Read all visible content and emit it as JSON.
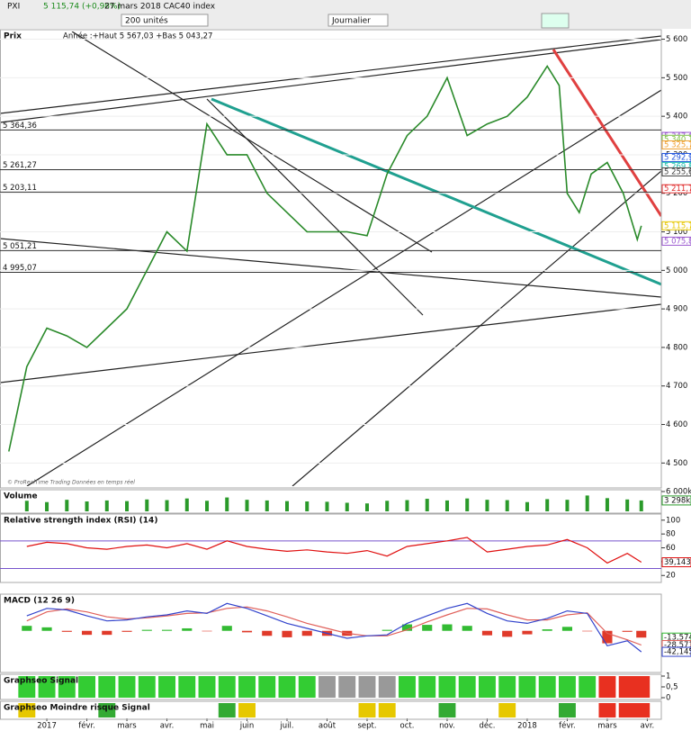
{
  "header": {
    "symbol": "PXI",
    "change": "5 115,74 (+0,98%)",
    "date": "27 mars 2018 CAC40 index",
    "units": "200 unités",
    "period": "Journalier"
  },
  "chart_data": [
    {
      "type": "line",
      "title": "Prix",
      "subtitle": "Année :+Haut 5 567,03 +Bas 5 043,27",
      "source": "© ProRealTime Trading  Données en temps réel",
      "color": "#2a8a2a",
      "x": [
        -0.95,
        -0.5,
        0,
        0.5,
        1,
        1.5,
        2,
        2.5,
        3,
        3.5,
        4,
        4.5,
        5,
        5.5,
        6,
        6.5,
        7,
        7.5,
        8,
        8.5,
        9,
        9.5,
        10,
        10.5,
        11,
        11.5,
        12,
        12.5,
        12.8,
        13,
        13.3,
        13.6,
        14,
        14.4,
        14.75,
        14.85
      ],
      "values": [
        4530,
        4750,
        4850,
        4830,
        4800,
        4850,
        4900,
        5000,
        5100,
        5050,
        5380,
        5300,
        5300,
        5200,
        5150,
        5100,
        5100,
        5100,
        5090,
        5250,
        5350,
        5400,
        5500,
        5350,
        5380,
        5400,
        5450,
        5530,
        5480,
        5200,
        5150,
        5250,
        5280,
        5200,
        5080,
        5115.74
      ],
      "xlim": [
        -1.17,
        15.35
      ],
      "xticks": [
        {
          "value": 0,
          "label": "2017"
        },
        {
          "value": 1,
          "label": "févr."
        },
        {
          "value": 2,
          "label": "mars"
        },
        {
          "value": 3,
          "label": "avr."
        },
        {
          "value": 4,
          "label": "mai"
        },
        {
          "value": 5,
          "label": "juin"
        },
        {
          "value": 6,
          "label": "juil."
        },
        {
          "value": 7,
          "label": "août"
        },
        {
          "value": 8,
          "label": "sept."
        },
        {
          "value": 9,
          "label": "oct."
        },
        {
          "value": 10,
          "label": "nov."
        },
        {
          "value": 11,
          "label": "déc."
        },
        {
          "value": 12,
          "label": "2018"
        },
        {
          "value": 13,
          "label": "févr."
        },
        {
          "value": 14,
          "label": "mars"
        },
        {
          "value": 15,
          "label": "avr."
        }
      ],
      "ylim": [
        4440,
        5620
      ],
      "yticks": [
        {
          "value": 4500,
          "label": "4 500"
        },
        {
          "value": 4600,
          "label": "4 600"
        },
        {
          "value": 4700,
          "label": "4 700"
        },
        {
          "value": 4800,
          "label": "4 800"
        },
        {
          "value": 4900,
          "label": "4 900"
        },
        {
          "value": 5000,
          "label": "5 000"
        },
        {
          "value": 5100,
          "label": "5 100"
        },
        {
          "value": 5200,
          "label": "5 200"
        },
        {
          "value": 5300,
          "label": "5 300"
        },
        {
          "value": 5400,
          "label": "5 400"
        },
        {
          "value": 5500,
          "label": "5 500"
        },
        {
          "value": 5600,
          "label": "5 600"
        }
      ],
      "levels": [
        {
          "value": 5364.36,
          "label": "5 364,36"
        },
        {
          "value": 5261.27,
          "label": "5 261,27"
        },
        {
          "value": 5203.11,
          "label": "5 203,11"
        },
        {
          "value": 5051.21,
          "label": "5 051,21"
        },
        {
          "value": 4995.07,
          "label": "4 995,07"
        }
      ],
      "price_labels": [
        {
          "value": 5347.68,
          "label": "5 347,68",
          "color": "#9b59d0"
        },
        {
          "value": 5340.13,
          "label": "5 340,13",
          "color": "#7bc043"
        },
        {
          "value": 5325.71,
          "label": "5 325,71",
          "color": "#f0a030"
        },
        {
          "value": 5292.94,
          "label": "5 292,94",
          "color": "#2255dd"
        },
        {
          "value": 5269.84,
          "label": "5 269,84",
          "color": "#20c0b0"
        },
        {
          "value": 5255.62,
          "label": "5 255,62",
          "color": "#444444"
        },
        {
          "value": 5211.79,
          "label": "5 211,79",
          "color": "#e03030"
        },
        {
          "value": 5115.74,
          "label": "5 115,74",
          "color": "#e8c800"
        },
        {
          "value": 5075.8,
          "label": "5 075,80",
          "color": "#9b59d0"
        }
      ]
    },
    {
      "type": "bar",
      "title": "Volume",
      "color": "#2a9a2a",
      "x": [
        -0.5,
        0,
        0.5,
        1,
        1.5,
        2,
        2.5,
        3,
        3.5,
        4,
        4.5,
        5,
        5.5,
        6,
        6.5,
        7,
        7.5,
        8,
        8.5,
        9,
        9.5,
        10,
        10.5,
        11,
        11.5,
        12,
        12.5,
        13,
        13.5,
        14,
        14.5,
        14.85
      ],
      "values": [
        3200,
        2800,
        3500,
        3000,
        3300,
        3100,
        3600,
        3400,
        3900,
        3200,
        4200,
        3500,
        3300,
        3100,
        3000,
        2900,
        2600,
        2400,
        3200,
        3400,
        3800,
        3300,
        3900,
        3500,
        3400,
        2800,
        3700,
        3500,
        4800,
        4000,
        3600,
        3298
      ],
      "last_label": "3 298k",
      "xlim": [
        -1.17,
        15.35
      ],
      "ylim": [
        0,
        6000
      ],
      "yticks": [
        {
          "value": 6000,
          "label": "6 000k"
        }
      ]
    },
    {
      "type": "line",
      "title": "Relative strength index (RSI) (14)",
      "color": "#e01010",
      "x": [
        -0.5,
        0,
        0.5,
        1,
        1.5,
        2,
        2.5,
        3,
        3.5,
        4,
        4.5,
        5,
        5.5,
        6,
        6.5,
        7,
        7.5,
        8,
        8.5,
        9,
        9.5,
        10,
        10.5,
        11,
        11.5,
        12,
        12.5,
        13,
        13.5,
        14,
        14.5,
        14.85
      ],
      "values": [
        62,
        68,
        66,
        60,
        58,
        62,
        64,
        60,
        66,
        58,
        70,
        62,
        58,
        55,
        57,
        54,
        52,
        56,
        48,
        62,
        66,
        70,
        75,
        54,
        58,
        62,
        64,
        72,
        60,
        38,
        52,
        39.143
      ],
      "last_label": "39,143",
      "xlim": [
        -1.17,
        15.35
      ],
      "ylim": [
        12.5,
        106.25
      ],
      "yticks": [
        100,
        80,
        60,
        40,
        20
      ],
      "ref_lines": [
        70,
        30
      ]
    },
    {
      "type": "line",
      "title": "MACD (12 26 9)",
      "x": [
        -0.5,
        0,
        0.5,
        1,
        1.5,
        2,
        2.5,
        3,
        3.5,
        4,
        4.5,
        5,
        5.5,
        6,
        6.5,
        7,
        7.5,
        8,
        8.5,
        9,
        9.5,
        10,
        10.5,
        11,
        11.5,
        12,
        12.5,
        13,
        13.5,
        14,
        14.5,
        14.85
      ],
      "xlim": [
        -1.17,
        15.35
      ],
      "ylim": [
        -80,
        70
      ],
      "series": [
        {
          "type": "bar",
          "color": "#33bb33",
          "negative_color": "#e03a2a",
          "values": [
            10,
            7,
            -2,
            -8,
            -8,
            -2,
            2,
            2,
            5,
            -1,
            10,
            -3,
            -10,
            -13,
            -10,
            -10,
            -10,
            0,
            2,
            13,
            12,
            13,
            10,
            -9,
            -12,
            -7,
            3,
            8,
            -1,
            -25,
            -2,
            -13.574
          ],
          "last_label": "-13,574"
        },
        {
          "color": "#e0605a",
          "values": [
            20,
            38,
            44,
            38,
            28,
            24,
            26,
            30,
            35,
            36,
            45,
            48,
            40,
            28,
            15,
            5,
            -5,
            -10,
            -10,
            2,
            18,
            32,
            45,
            44,
            32,
            22,
            22,
            32,
            36,
            -5,
            -18,
            -28.571
          ],
          "last_label": "-28,571"
        },
        {
          "color": "#3344cc",
          "values": [
            30,
            45,
            42,
            30,
            20,
            22,
            28,
            32,
            40,
            35,
            55,
            45,
            30,
            15,
            5,
            -5,
            -15,
            -10,
            -8,
            15,
            30,
            45,
            55,
            35,
            20,
            15,
            25,
            40,
            35,
            -30,
            -20,
            -42.145
          ],
          "last_label": "-42,145"
        }
      ]
    },
    {
      "type": "bar",
      "title": "Graphseo Signal",
      "x": [
        -0.5,
        0,
        0.5,
        1,
        1.5,
        2,
        2.5,
        3,
        3.5,
        4,
        4.5,
        5,
        5.5,
        6,
        6.5,
        7,
        7.5,
        8,
        8.5,
        9,
        9.5,
        10,
        10.5,
        11,
        11.5,
        12,
        12.5,
        13,
        13.5,
        14,
        14.5,
        14.85
      ],
      "values": [
        1,
        1,
        1,
        1,
        1,
        1,
        1,
        1,
        1,
        1,
        1,
        1,
        1,
        1,
        1,
        1,
        1,
        1,
        1,
        1,
        1,
        1,
        1,
        1,
        1,
        1,
        1,
        1,
        1,
        1,
        1,
        1
      ],
      "colors": [
        "#33cc33",
        "#33cc33",
        "#33cc33",
        "#33cc33",
        "#33cc33",
        "#33cc33",
        "#33cc33",
        "#33cc33",
        "#33cc33",
        "#33cc33",
        "#33cc33",
        "#33cc33",
        "#33cc33",
        "#33cc33",
        "#33cc33",
        "#999999",
        "#999999",
        "#999999",
        "#999999",
        "#33cc33",
        "#33cc33",
        "#33cc33",
        "#33cc33",
        "#33cc33",
        "#33cc33",
        "#33cc33",
        "#33cc33",
        "#33cc33",
        "#33cc33",
        "#e83020",
        "#e83020",
        "#e83020"
      ],
      "xlim": [
        -1.17,
        15.35
      ],
      "ylim": [
        0,
        1
      ],
      "yticks": [
        1,
        {
          "value": 0.5,
          "label": "0,5"
        },
        0
      ]
    },
    {
      "type": "bar",
      "title": "Graphseo Moindre risque Signal",
      "x": [
        -0.5,
        0,
        0.5,
        1,
        1.5,
        2,
        2.5,
        3,
        3.5,
        4,
        4.5,
        5,
        5.5,
        6,
        6.5,
        7,
        7.5,
        8,
        8.5,
        9,
        9.5,
        10,
        10.5,
        11,
        11.5,
        12,
        12.5,
        13,
        13.5,
        14,
        14.5,
        14.85
      ],
      "values": [
        1,
        0,
        0,
        0,
        1,
        0,
        0,
        0,
        0,
        0,
        1,
        1,
        0,
        0,
        0,
        0,
        0,
        1,
        1,
        0,
        0,
        1,
        0,
        0,
        1,
        0,
        0,
        1,
        0,
        1,
        1,
        1
      ],
      "colors": [
        "#e6c800",
        "#e6c800",
        "#e6c800",
        "#e6c800",
        "#33aa33",
        "#e6c800",
        "#e6c800",
        "#e6c800",
        "#e6c800",
        "#e6c800",
        "#33aa33",
        "#e6c800",
        "#e6c800",
        "#e6c800",
        "#e6c800",
        "#e6c800",
        "#e6c800",
        "#e6c800",
        "#e6c800",
        "#e6c800",
        "#e6c800",
        "#33aa33",
        "#e6c800",
        "#e6c800",
        "#e6c800",
        "#e6c800",
        "#e6c800",
        "#33aa33",
        "#e6c800",
        "#e83020",
        "#e83020",
        "#e83020"
      ],
      "xlim": [
        -1.17,
        15.35
      ],
      "ylim": [
        0,
        1
      ]
    }
  ]
}
